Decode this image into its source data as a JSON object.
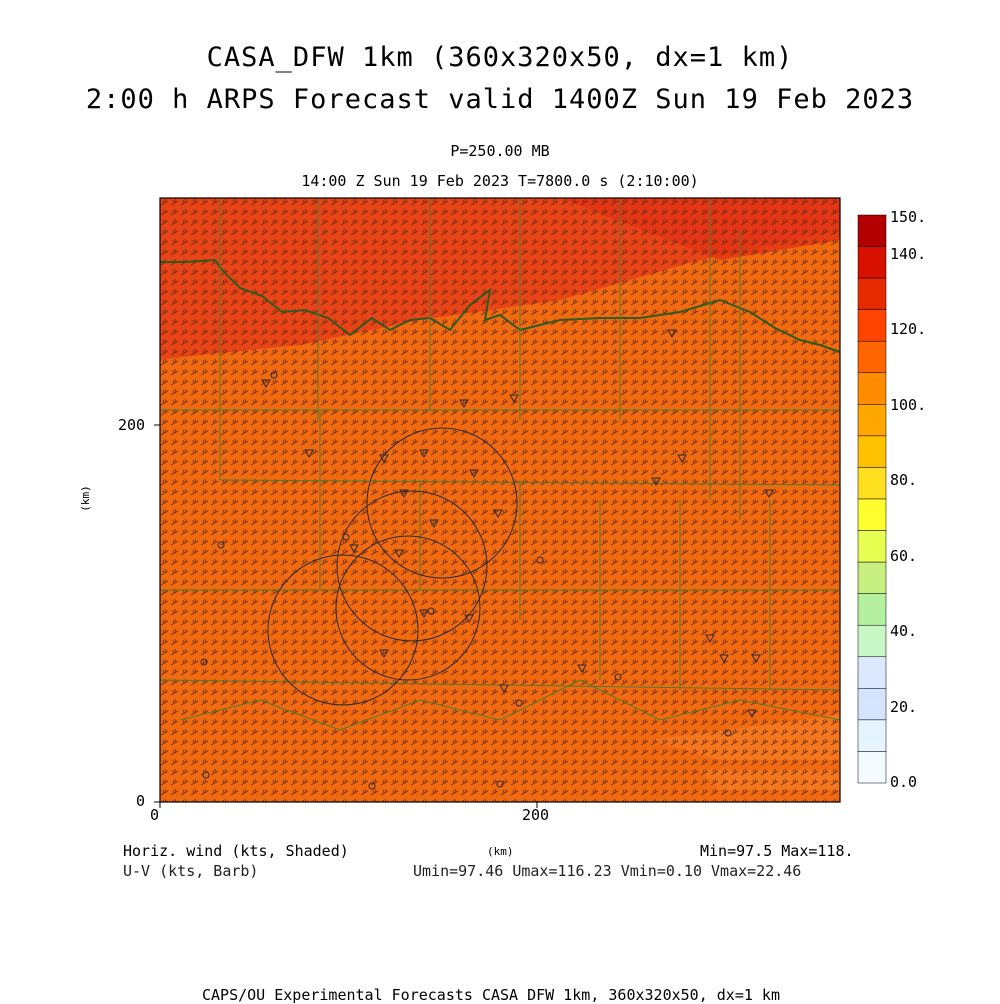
{
  "title": {
    "line1": "CASA_DFW 1km (360x320x50, dx=1 km)",
    "line2": "2:00 h ARPS Forecast valid 1400Z Sun 19 Feb 2023"
  },
  "subtitle": {
    "level": "P=250.00 MB",
    "time": "14:00 Z Sun 19 Feb 2023   T=7800.0 s (2:10:00)"
  },
  "axes": {
    "x_ticks": [
      "0",
      "200"
    ],
    "y_ticks": [
      "0",
      "200"
    ],
    "x_unit": "(km)",
    "y_unit": "(km)"
  },
  "colorbar": {
    "labels": [
      "150.",
      "140.",
      "120.",
      "100.",
      "80.",
      "60.",
      "40.",
      "20.",
      "0.0"
    ],
    "colors": [
      "#b20000",
      "#d81000",
      "#e82a00",
      "#ff4400",
      "#ff6600",
      "#ff8c00",
      "#ffa600",
      "#ffc000",
      "#ffe020",
      "#ffff30",
      "#e6ff50",
      "#c8f080",
      "#b4f0a0",
      "#c8f8c8",
      "#dce8ff",
      "#d6e4ff",
      "#e6f4ff",
      "#f4fbff"
    ]
  },
  "footer": {
    "left1": "Horiz. wind (kts, Shaded)",
    "left2": "U-V (kts, Barb)",
    "right1": "Min=97.5 Max=118.",
    "right2": "Umin=97.46 Umax=116.23 Vmin=0.10 Vmax=22.46",
    "bottom": "CAPS/OU Experimental Forecasts  CASA DFW 1km, 360x320x50, dx=1 km"
  },
  "map": {
    "field_color": "#f06a14",
    "high_color": "#e8401a",
    "boundary_color": "#3a6a2a"
  }
}
